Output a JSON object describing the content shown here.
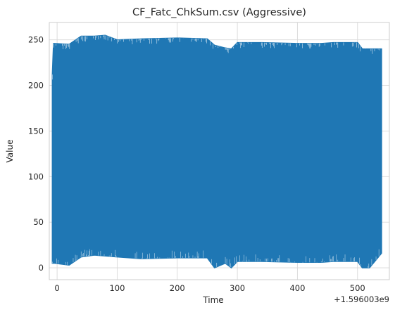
{
  "chart_data": {
    "type": "line",
    "title": "CF_Fatc_ChkSum.csv (Aggressive)",
    "xlabel": "Time",
    "ylabel": "Value",
    "x_offset_label": "+1.596003e9",
    "xlim": [
      -13,
      553
    ],
    "ylim": [
      -13,
      269
    ],
    "x_ticks": [
      0,
      100,
      200,
      300,
      400,
      500
    ],
    "x_tick_labels": [
      "0",
      "100",
      "200",
      "300",
      "400",
      "500"
    ],
    "y_ticks": [
      0,
      50,
      100,
      150,
      200,
      250
    ],
    "y_tick_labels": [
      "0",
      "50",
      "100",
      "150",
      "200",
      "250"
    ],
    "grid": true,
    "series": [
      {
        "color": "#1f77b4",
        "x_range": [
          -8,
          540
        ],
        "x": [
          -8,
          -6,
          -4,
          20,
          40,
          62,
          80,
          100,
          140,
          200,
          250,
          262,
          280,
          290,
          300,
          340,
          400,
          440,
          460,
          500,
          508,
          520,
          540
        ],
        "max": [
          212,
          246,
          246,
          245,
          254,
          254,
          255,
          250,
          251,
          252,
          251,
          244,
          241,
          240,
          247,
          247,
          246,
          246,
          247,
          247,
          240,
          240,
          240
        ],
        "min": [
          5,
          5,
          5,
          3,
          12,
          14,
          13,
          12,
          10,
          11,
          11,
          0,
          5,
          0,
          7,
          7,
          6,
          6,
          7,
          7,
          0,
          0,
          16
        ]
      }
    ]
  }
}
